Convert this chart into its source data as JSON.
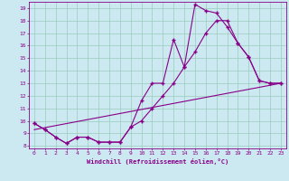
{
  "xlabel": "Windchill (Refroidissement éolien,°C)",
  "bg_color": "#cce8f0",
  "line_color": "#880088",
  "grid_color": "#99ccbb",
  "xlim": [
    -0.5,
    23.5
  ],
  "ylim": [
    7.8,
    19.5
  ],
  "yticks": [
    8,
    9,
    10,
    11,
    12,
    13,
    14,
    15,
    16,
    17,
    18,
    19
  ],
  "xticks": [
    0,
    1,
    2,
    3,
    4,
    5,
    6,
    7,
    8,
    9,
    10,
    11,
    12,
    13,
    14,
    15,
    16,
    17,
    18,
    19,
    20,
    21,
    22,
    23
  ],
  "line1_x": [
    0,
    1,
    2,
    3,
    4,
    5,
    6,
    7,
    8,
    9,
    10,
    11,
    12,
    13,
    14,
    15,
    16,
    17,
    18,
    19,
    20,
    21,
    22,
    23
  ],
  "line1_y": [
    9.8,
    9.3,
    8.7,
    8.2,
    8.7,
    8.7,
    8.3,
    8.3,
    8.3,
    9.5,
    11.6,
    13.0,
    13.0,
    16.5,
    14.3,
    19.3,
    18.8,
    18.6,
    17.5,
    16.2,
    15.1,
    13.2,
    13.0,
    13.0
  ],
  "line2_x": [
    0,
    1,
    2,
    3,
    4,
    5,
    6,
    7,
    8,
    9,
    10,
    11,
    12,
    13,
    14,
    15,
    16,
    17,
    18,
    19,
    20,
    21,
    22,
    23
  ],
  "line2_y": [
    9.8,
    9.3,
    8.7,
    8.2,
    8.7,
    8.7,
    8.3,
    8.3,
    8.3,
    9.5,
    10.0,
    11.0,
    12.0,
    13.0,
    14.3,
    15.5,
    17.0,
    18.0,
    18.0,
    16.2,
    15.1,
    13.2,
    13.0,
    13.0
  ],
  "line3_x": [
    0,
    23
  ],
  "line3_y": [
    9.3,
    13.0
  ]
}
